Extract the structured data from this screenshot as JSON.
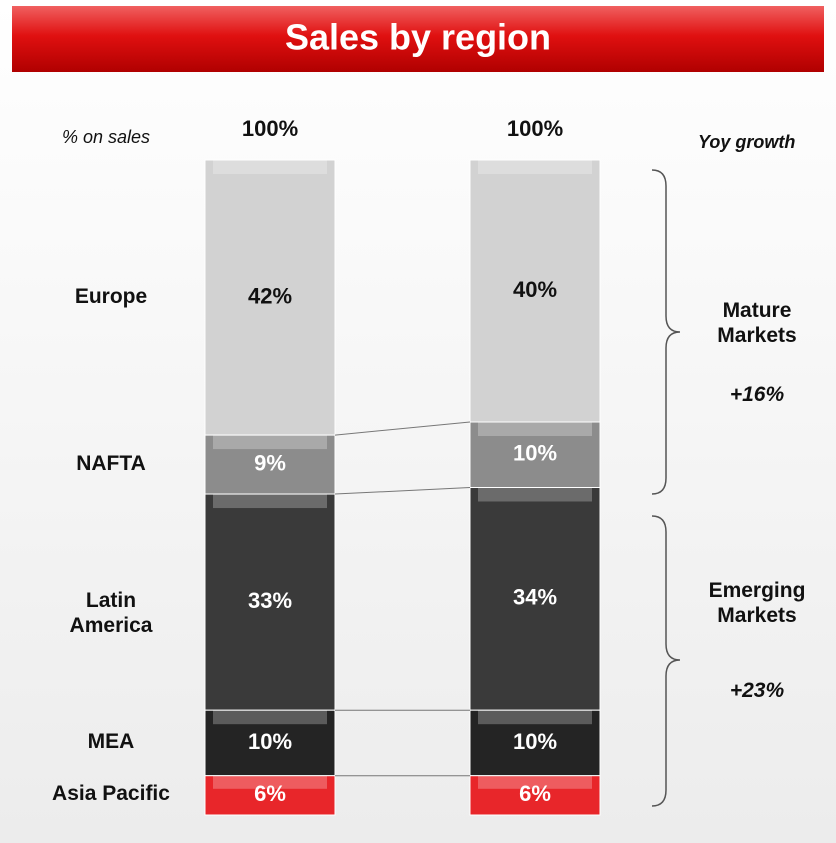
{
  "chart_data": {
    "type": "stacked_bar",
    "title": "Sales by region",
    "axis_note": "% on sales",
    "growth_note": "Yoy growth",
    "categories": [
      null,
      null
    ],
    "totals": [
      100,
      100
    ],
    "total_labels": [
      "100%",
      "100%"
    ],
    "series": [
      {
        "name": "Europe",
        "color": "#d2d2d2",
        "values": [
          42,
          40
        ],
        "value_labels": [
          "42%",
          "40%"
        ]
      },
      {
        "name": "NAFTA",
        "color": "#8c8c8c",
        "values": [
          9,
          10
        ],
        "value_labels": [
          "9%",
          "10%"
        ]
      },
      {
        "name": "Latin America",
        "color": "#3a3a3a",
        "values": [
          33,
          34
        ],
        "value_labels": [
          "33%",
          "34%"
        ]
      },
      {
        "name": "MEA",
        "color": "#242424",
        "values": [
          10,
          10
        ],
        "value_labels": [
          "10%",
          "10%"
        ]
      },
      {
        "name": "Asia Pacific",
        "color": "#e8262a",
        "values": [
          6,
          6
        ],
        "value_labels": [
          "6%",
          "6%"
        ]
      }
    ],
    "groups": [
      {
        "name": "Mature Markets",
        "growth": "+16%"
      },
      {
        "name": "Emerging Markets",
        "growth": "+23%"
      }
    ]
  }
}
